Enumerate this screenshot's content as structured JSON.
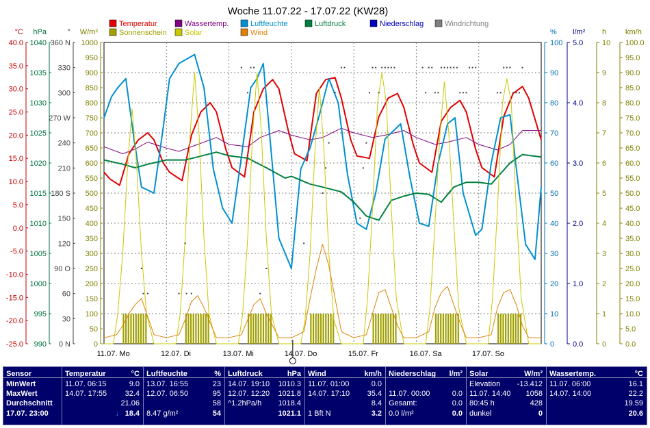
{
  "chart_data": {
    "type": "line",
    "title": "Woche 11.07.22 - 17.07.22 (KW28)",
    "x_ticks": [
      "11.07. Mo",
      "12.07. Di",
      "13.07. Mi",
      "14.07. Do",
      "15.07. Fr",
      "16.07. Sa",
      "17.07. So"
    ],
    "axes": {
      "temp": {
        "unit": "°C",
        "ticks": [
          "40.0",
          "35.0",
          "30.0",
          "25.0",
          "20.0",
          "15.0",
          "10.0",
          "5.0",
          "0.0",
          "-5.0",
          "-10.0",
          "-15.0",
          "-20.0",
          "-25.0"
        ],
        "color": "#c00000"
      },
      "pressure": {
        "unit": "hPa",
        "ticks": [
          "1040",
          "1035",
          "1030",
          "1025",
          "1020",
          "1015",
          "1010",
          "1005",
          "1000",
          "995",
          "990"
        ],
        "color": "#007040"
      },
      "wind_dir": {
        "unit": "°",
        "ticks": [
          "360 N",
          "330",
          "300",
          "270 W",
          "240",
          "210",
          "180 S",
          "150",
          "120",
          "90 O",
          "60",
          "30",
          "0 N"
        ],
        "color": "#404040"
      },
      "solar": {
        "unit": "W/m²",
        "ticks": [
          "1000",
          "950",
          "900",
          "850",
          "800",
          "750",
          "700",
          "650",
          "600",
          "550",
          "500",
          "450",
          "400",
          "350",
          "300",
          "250",
          "200",
          "150",
          "100",
          "50",
          "0"
        ],
        "color": "#808000"
      },
      "humidity": {
        "unit": "%",
        "ticks": [
          "100",
          "90",
          "80",
          "70",
          "60",
          "50",
          "40",
          "30",
          "20",
          "10",
          "0"
        ],
        "color": "#0070b0"
      },
      "rain": {
        "unit": "l/m²",
        "ticks": [
          "5.0",
          "4.0",
          "3.0",
          "2.0",
          "1.0",
          "0.0"
        ],
        "color": "#000080"
      },
      "sunshine": {
        "unit": "h",
        "ticks": [
          "10",
          "9",
          "8",
          "7",
          "6",
          "5",
          "4",
          "3",
          "2",
          "1",
          "0"
        ],
        "color": "#808000"
      },
      "wind": {
        "unit": "km/h",
        "ticks": [
          "100.0",
          "95.0",
          "90.0",
          "85.0",
          "80.0",
          "75.0",
          "70.0",
          "65.0",
          "60.0",
          "55.0",
          "50.0",
          "45.0",
          "40.0",
          "35.0",
          "30.0",
          "25.0",
          "20.0",
          "15.0",
          "10.0",
          "5.0",
          "0.0"
        ],
        "color": "#808000"
      }
    },
    "legend": [
      {
        "name": "Temperatur",
        "color": "#e00000"
      },
      {
        "name": "Wassertemp.",
        "color": "#800080"
      },
      {
        "name": "Luftfeuchte",
        "color": "#0090d0"
      },
      {
        "name": "Luftdruck",
        "color": "#008040"
      },
      {
        "name": "Niederschlag",
        "color": "#0000c0"
      },
      {
        "name": "Windrichtung",
        "color": "#808080"
      },
      {
        "name": "Sonnenschein",
        "color": "#a0a000"
      },
      {
        "name": "Solar",
        "color": "#c8c800"
      },
      {
        "name": "Wind",
        "color": "#e08000"
      }
    ],
    "series": [
      {
        "name": "Temperatur",
        "axis": "temp",
        "color": "#e00000",
        "x": [
          0,
          0.1,
          0.25,
          0.4,
          0.55,
          0.7,
          0.8,
          0.95,
          1.05,
          1.25,
          1.4,
          1.55,
          1.7,
          1.8,
          1.95,
          2.05,
          2.25,
          2.4,
          2.55,
          2.7,
          2.8,
          2.95,
          3.05,
          3.25,
          3.4,
          3.55,
          3.7,
          3.8,
          3.95,
          4.05,
          4.25,
          4.4,
          4.55,
          4.7,
          4.8,
          4.95,
          5.05,
          5.25,
          5.4,
          5.55,
          5.7,
          5.8,
          5.95,
          6.05,
          6.25,
          6.4,
          6.55,
          6.7,
          6.8,
          7.0
        ],
        "y": [
          12,
          10.5,
          9.2,
          16,
          19,
          20.5,
          19,
          14,
          12,
          10.2,
          20,
          25,
          27,
          25,
          17,
          13,
          11,
          25,
          30,
          32,
          30,
          21,
          16,
          14.5,
          29,
          32,
          32.4,
          28,
          19,
          15.5,
          15,
          24,
          28,
          29,
          26,
          18,
          14,
          12,
          23,
          26,
          27.5,
          25,
          17,
          13,
          11,
          24,
          29,
          30.5,
          28,
          19
        ]
      },
      {
        "name": "Wassertemp.",
        "axis": "temp",
        "color": "#800080",
        "x": [
          0,
          0.3,
          0.5,
          0.7,
          1.0,
          1.2,
          1.5,
          1.8,
          2.0,
          2.3,
          2.5,
          2.8,
          3.0,
          3.3,
          3.5,
          3.8,
          4.0,
          4.3,
          4.5,
          4.8,
          5.0,
          5.3,
          5.5,
          5.8,
          6.0,
          6.3,
          6.5,
          6.7,
          7.0
        ],
        "y": [
          17.5,
          16,
          17,
          18.5,
          17.2,
          16.5,
          18,
          19.5,
          18,
          17.5,
          19.5,
          21,
          20,
          19,
          19.5,
          21.5,
          20.5,
          19.5,
          20,
          21,
          19.5,
          18,
          18.5,
          19.5,
          18,
          16.8,
          18,
          21,
          21
        ]
      },
      {
        "name": "Luftfeuchte",
        "axis": "humidity",
        "color": "#0090d0",
        "x": [
          0,
          0.12,
          0.22,
          0.35,
          0.48,
          0.6,
          0.8,
          0.95,
          1.05,
          1.2,
          1.45,
          1.6,
          1.75,
          1.9,
          2.05,
          2.2,
          2.35,
          2.45,
          2.55,
          2.65,
          2.8,
          3.0,
          3.15,
          3.3,
          3.45,
          3.6,
          3.75,
          3.9,
          4.05,
          4.2,
          4.35,
          4.5,
          4.6,
          4.75,
          4.9,
          5.05,
          5.2,
          5.35,
          5.5,
          5.62,
          5.75,
          5.95,
          6.05,
          6.2,
          6.35,
          6.5,
          6.62,
          6.75,
          6.9,
          7.0
        ],
        "y": [
          75,
          82,
          85,
          88,
          68,
          52,
          50,
          72,
          88,
          93,
          96,
          85,
          58,
          45,
          40,
          62,
          85,
          88,
          93,
          70,
          35,
          25,
          58,
          65,
          76,
          88,
          80,
          56,
          40,
          38,
          50,
          68,
          70,
          73,
          55,
          40,
          39,
          60,
          73,
          75,
          50,
          36,
          38,
          60,
          75,
          76,
          55,
          33,
          28,
          52
        ]
      },
      {
        "name": "Luftdruck",
        "axis": "pressure",
        "color": "#008040",
        "x": [
          0,
          0.3,
          0.5,
          0.7,
          1.0,
          1.3,
          1.5,
          1.8,
          2.0,
          2.3,
          2.6,
          2.9,
          3.0,
          3.3,
          3.5,
          3.8,
          4.0,
          4.2,
          4.4,
          4.6,
          4.8,
          5.0,
          5.2,
          5.4,
          5.6,
          5.8,
          6.0,
          6.2,
          6.5,
          6.7,
          7.0
        ],
        "y": [
          1020.5,
          1019.8,
          1019.2,
          1019.8,
          1020.5,
          1020.5,
          1021,
          1021.8,
          1021.2,
          1020.8,
          1019.2,
          1017.5,
          1017.8,
          1016.5,
          1016,
          1015.2,
          1013.5,
          1011.2,
          1010.5,
          1013.8,
          1014.5,
          1015,
          1014.8,
          1013.5,
          1016,
          1016.8,
          1016.8,
          1016.5,
          1020,
          1021.4,
          1021
        ]
      },
      {
        "name": "Solar",
        "axis": "solar",
        "color": "#c8c800",
        "x": [
          0,
          0.15,
          0.22,
          0.3,
          0.38,
          0.45,
          0.52,
          0.6,
          0.68,
          0.8,
          1.0,
          1.15,
          1.22,
          1.3,
          1.38,
          1.45,
          1.52,
          1.6,
          1.68,
          1.8,
          2.0,
          2.15,
          2.22,
          2.3,
          2.38,
          2.45,
          2.52,
          2.6,
          2.68,
          2.8,
          3.0,
          3.15,
          3.22,
          3.3,
          3.38,
          3.45,
          3.52,
          3.6,
          3.68,
          3.8,
          4.0,
          4.15,
          4.22,
          4.3,
          4.38,
          4.45,
          4.52,
          4.6,
          4.68,
          4.8,
          5.0,
          5.15,
          5.22,
          5.3,
          5.38,
          5.45,
          5.52,
          5.6,
          5.68,
          5.8,
          6.0,
          6.15,
          6.22,
          6.3,
          6.38,
          6.45,
          6.52,
          6.6,
          6.68,
          6.8,
          7.0
        ],
        "y": [
          0,
          0,
          100,
          300,
          600,
          780,
          600,
          300,
          100,
          0,
          0,
          0,
          100,
          350,
          700,
          900,
          700,
          350,
          100,
          0,
          0,
          0,
          100,
          350,
          700,
          900,
          700,
          350,
          100,
          0,
          0,
          0,
          80,
          300,
          650,
          850,
          650,
          300,
          80,
          0,
          0,
          0,
          150,
          450,
          800,
          900,
          800,
          450,
          150,
          0,
          0,
          0,
          120,
          400,
          700,
          870,
          700,
          400,
          120,
          0,
          0,
          0,
          150,
          450,
          800,
          880,
          800,
          450,
          150,
          0,
          0
        ]
      },
      {
        "name": "Wind",
        "axis": "wind",
        "color": "#e08000",
        "x": [
          0,
          0.2,
          0.3,
          0.4,
          0.5,
          0.6,
          0.7,
          0.8,
          1.0,
          1.2,
          1.3,
          1.4,
          1.5,
          1.6,
          1.7,
          1.8,
          2.0,
          2.2,
          2.3,
          2.4,
          2.5,
          2.6,
          2.7,
          2.8,
          3.0,
          3.2,
          3.3,
          3.4,
          3.5,
          3.6,
          3.7,
          3.8,
          4.0,
          4.2,
          4.3,
          4.4,
          4.5,
          4.6,
          4.7,
          4.8,
          5.0,
          5.2,
          5.3,
          5.4,
          5.5,
          5.6,
          5.7,
          5.8,
          6.0,
          6.2,
          6.3,
          6.4,
          6.5,
          6.6,
          6.7,
          6.8,
          7.0
        ],
        "y": [
          2,
          3,
          6,
          10,
          13,
          15,
          9,
          3,
          2,
          3,
          8,
          14,
          16,
          12,
          7,
          2,
          2,
          3,
          8,
          13,
          15,
          10,
          6,
          2,
          2,
          4,
          15,
          25,
          33,
          26,
          15,
          4,
          2,
          3,
          10,
          17,
          18,
          12,
          6,
          2,
          2,
          4,
          12,
          17,
          19,
          13,
          7,
          2,
          2,
          3,
          12,
          17,
          18,
          13,
          6,
          2,
          2
        ]
      }
    ],
    "sunshine": {
      "axis": "sunshine",
      "color": "#a0a000",
      "days": [
        {
          "start": 0.3,
          "end": 0.68,
          "value": 1.0
        },
        {
          "start": 1.3,
          "end": 1.68,
          "value": 1.0
        },
        {
          "start": 2.3,
          "end": 2.68,
          "value": 1.0
        },
        {
          "start": 3.3,
          "end": 3.68,
          "value": 1.0
        },
        {
          "start": 4.3,
          "end": 4.68,
          "value": 1.0
        },
        {
          "start": 5.3,
          "end": 5.68,
          "value": 1.0
        },
        {
          "start": 6.3,
          "end": 6.68,
          "value": 1.0
        }
      ]
    },
    "wind_dir_points": {
      "axis": "wind_dir",
      "color": "#404040",
      "x": [
        0.6,
        0.63,
        0.7,
        1.2,
        1.3,
        1.32,
        1.4,
        2.2,
        2.3,
        2.35,
        2.4,
        2.5,
        2.6,
        3.0,
        3.2,
        3.5,
        3.55,
        3.6,
        3.7,
        3.8,
        3.85,
        4.1,
        4.15,
        4.2,
        4.25,
        4.3,
        4.35,
        4.4,
        4.45,
        4.5,
        4.55,
        4.6,
        4.65,
        5.1,
        5.15,
        5.2,
        5.25,
        5.3,
        5.35,
        5.4,
        5.45,
        5.5,
        5.55,
        5.6,
        5.65,
        5.7,
        5.75,
        5.8,
        5.85,
        5.9,
        5.95,
        6.3,
        6.35,
        6.4,
        6.45,
        6.5,
        6.55,
        6.6,
        6.65,
        6.7
      ],
      "y": [
        90,
        60,
        60,
        60,
        120,
        60,
        60,
        330,
        300,
        330,
        330,
        60,
        90,
        150,
        120,
        180,
        210,
        240,
        300,
        330,
        330,
        150,
        210,
        240,
        300,
        330,
        330,
        300,
        330,
        330,
        330,
        330,
        330,
        330,
        300,
        330,
        330,
        300,
        300,
        330,
        330,
        330,
        330,
        330,
        330,
        300,
        300,
        300,
        330,
        330,
        330,
        300,
        300,
        330,
        330,
        330,
        300,
        300,
        300,
        330
      ]
    },
    "marker_x": 3.0
  },
  "table": {
    "columns": [
      {
        "header": "Sensor",
        "unit": "",
        "rows": [
          "MinWert",
          "MaxWert",
          "Durchschnitt",
          "17.07. 23:00"
        ]
      },
      {
        "header": "Temperatur",
        "unit": "°C",
        "rows": [
          {
            "l": "11.07. 06:15",
            "r": "9.0"
          },
          {
            "l": "14.07. 17:55",
            "r": "32.4"
          },
          {
            "l": "",
            "r": "21.06"
          },
          {
            "l": "",
            "arrow": "↓",
            "r": "18.4"
          }
        ]
      },
      {
        "header": "Luftfeuchte",
        "unit": "%",
        "rows": [
          {
            "l": "13.07. 16:55",
            "r": "23"
          },
          {
            "l": "12.07. 06:50",
            "r": "95"
          },
          {
            "l": "",
            "r": "58"
          },
          {
            "l": "8.47 g/m²",
            "r": "54"
          }
        ]
      },
      {
        "header": "Luftdruck",
        "unit": "hPa",
        "rows": [
          {
            "l": "14.07. 19:10",
            "r": "1010.3"
          },
          {
            "l": "12.07. 12:20",
            "r": "1021.8"
          },
          {
            "l": "^1.2hPa/h",
            "r": "1018.4"
          },
          {
            "l": "",
            "r": "1021.1"
          }
        ]
      },
      {
        "header": "Wind",
        "unit": "km/h",
        "rows": [
          {
            "l": "11.07. 01:00",
            "r": "0.0"
          },
          {
            "l": "14.07. 17:10",
            "r": "35.4"
          },
          {
            "l": "",
            "r": "8.4"
          },
          {
            "l": "1 Bft N",
            "r": "3.2"
          }
        ]
      },
      {
        "header": "Niederschlag",
        "unit": "l/m²",
        "rows": [
          {
            "l": "",
            "r": ""
          },
          {
            "l": "11.07. 00:00",
            "r": "0.0"
          },
          {
            "l": "Gesamt:",
            "r": "0.0"
          },
          {
            "l": "0.0 l/m²",
            "r": "0.0"
          }
        ]
      },
      {
        "header": "Solar",
        "unit": "W/m²",
        "rows": [
          {
            "l": "Elevation",
            "r": "-13.412"
          },
          {
            "l": "11.07. 14:40",
            "r": "1058"
          },
          {
            "l": "80:45 h",
            "r": "428"
          },
          {
            "l": "dunkel",
            "r": "0"
          }
        ]
      },
      {
        "header": "Wassertemp.",
        "unit": "°C",
        "rows": [
          {
            "l": "11.07. 06:00",
            "r": "16.1"
          },
          {
            "l": "14.07. 14:00",
            "r": "22.2"
          },
          {
            "l": "",
            "r": "19.59"
          },
          {
            "l": "",
            "r": "20.6"
          }
        ]
      }
    ]
  }
}
